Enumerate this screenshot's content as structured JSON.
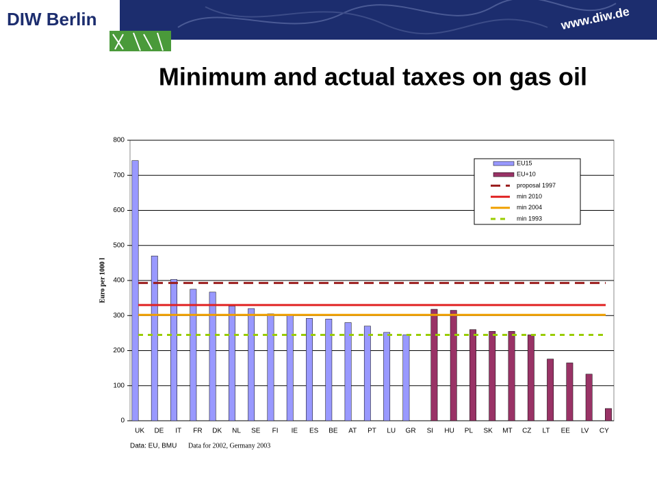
{
  "header": {
    "logo": "DIW Berlin",
    "url": "www.diw.de"
  },
  "chart_data": {
    "type": "bar",
    "title": "Minimum and actual taxes on gas oil",
    "y_label": "Euro per 1000 l",
    "source": "Data: EU, BMU",
    "note": "Data for 2002, Germany 2003",
    "categories": [
      "UK",
      "DE",
      "IT",
      "FR",
      "DK",
      "NL",
      "SE",
      "FI",
      "IE",
      "ES",
      "BE",
      "AT",
      "PT",
      "LU",
      "GR",
      "SI",
      "HU",
      "PL",
      "SK",
      "MT",
      "CZ",
      "LT",
      "EE",
      "LV",
      "CY"
    ],
    "series": [
      {
        "name": "EU15",
        "color": "#9999ff",
        "values": [
          742,
          470,
          403,
          375,
          367,
          327,
          320,
          305,
          302,
          292,
          290,
          280,
          270,
          252,
          245,
          null,
          null,
          null,
          null,
          null,
          null,
          null,
          null,
          null,
          null
        ]
      },
      {
        "name": "EU+10",
        "color": "#993366",
        "values": [
          null,
          null,
          null,
          null,
          null,
          null,
          null,
          null,
          null,
          null,
          null,
          null,
          null,
          null,
          null,
          318,
          315,
          260,
          255,
          255,
          245,
          176,
          165,
          133,
          35
        ]
      }
    ],
    "lines": [
      {
        "name": "proposal 1997",
        "color": "#9a1c1c",
        "value": 393,
        "style": "dashed"
      },
      {
        "name": "min 2010",
        "color": "#e02222",
        "value": 330,
        "style": "solid"
      },
      {
        "name": "min 2004",
        "color": "#f0a000",
        "value": 302,
        "style": "solid"
      },
      {
        "name": "min 1993",
        "color": "#99cc00",
        "value": 245,
        "style": "dotted"
      }
    ],
    "ylim": [
      0,
      800
    ],
    "yticks": [
      0,
      100,
      200,
      300,
      400,
      500,
      600,
      700,
      800
    ],
    "grid": true
  }
}
